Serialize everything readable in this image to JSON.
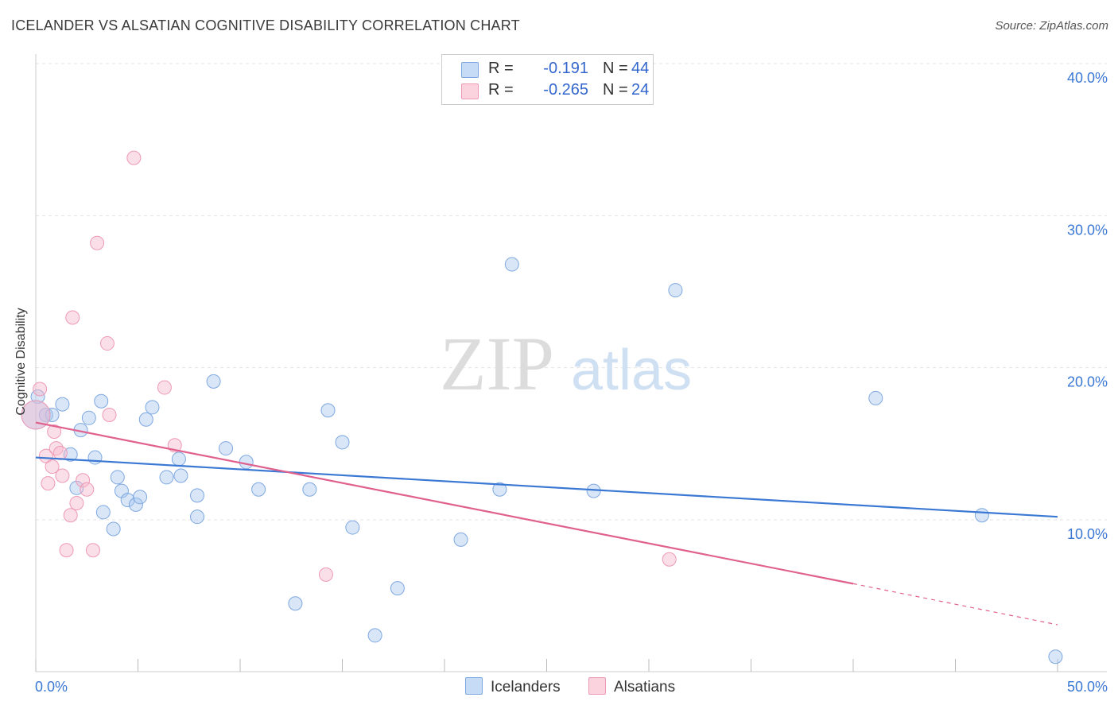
{
  "header": {
    "title": "ICELANDER VS ALSATIAN COGNITIVE DISABILITY CORRELATION CHART",
    "source": "Source: ZipAtlas.com"
  },
  "legend_top": {
    "rows": [
      {
        "r_label": "R =",
        "r_value": "-0.191",
        "n_label": "N =",
        "n_value": "44",
        "color": "#a9c8f0"
      },
      {
        "r_label": "R =",
        "r_value": "-0.265",
        "n_label": "N =",
        "n_value": "24",
        "color": "#f6b8cb"
      }
    ]
  },
  "legend_bottom": {
    "items": [
      {
        "label": "Icelanders",
        "color": "#a9c8f0"
      },
      {
        "label": "Alsatians",
        "color": "#f6b8cb"
      }
    ]
  },
  "watermark": {
    "zip": "ZIP",
    "atlas": "atlas"
  },
  "chart_data": {
    "type": "scatter",
    "title": "ICELANDER VS ALSATIAN COGNITIVE DISABILITY CORRELATION CHART",
    "ylabel": "Cognitive Disability",
    "xlabel": "",
    "xlim": [
      0,
      50
    ],
    "ylim": [
      0,
      40
    ],
    "x_tick_labels": [
      "0.0%",
      "50.0%"
    ],
    "y_tick_labels": [
      "10.0%",
      "20.0%",
      "30.0%",
      "40.0%"
    ],
    "y_ticks": [
      10,
      20,
      30,
      40
    ],
    "grid": true,
    "legend_position": "top-center",
    "colors": {
      "icelanders": "#3a78d4",
      "alsatians": "#e0608e"
    },
    "series": [
      {
        "name": "Icelanders",
        "r": -0.191,
        "n": 44,
        "trend": {
          "x0": 0,
          "y0": 14.1,
          "x1": 50,
          "y1": 10.2
        },
        "points": [
          [
            0.1,
            18.1
          ],
          [
            0.5,
            16.9
          ],
          [
            0.8,
            16.9
          ],
          [
            1.3,
            17.6
          ],
          [
            1.7,
            14.3
          ],
          [
            2.0,
            12.1
          ],
          [
            2.2,
            15.9
          ],
          [
            2.6,
            16.7
          ],
          [
            2.9,
            14.1
          ],
          [
            3.2,
            17.8
          ],
          [
            3.3,
            10.5
          ],
          [
            3.8,
            9.4
          ],
          [
            4.0,
            12.8
          ],
          [
            4.2,
            11.9
          ],
          [
            4.5,
            11.3
          ],
          [
            4.9,
            11.0
          ],
          [
            5.1,
            11.5
          ],
          [
            5.4,
            16.6
          ],
          [
            5.7,
            17.4
          ],
          [
            6.4,
            12.8
          ],
          [
            7.0,
            14.0
          ],
          [
            7.1,
            12.9
          ],
          [
            7.9,
            11.6
          ],
          [
            7.9,
            10.2
          ],
          [
            8.7,
            19.1
          ],
          [
            9.3,
            14.7
          ],
          [
            10.3,
            13.8
          ],
          [
            10.9,
            12.0
          ],
          [
            12.7,
            4.5
          ],
          [
            13.4,
            12.0
          ],
          [
            14.3,
            17.2
          ],
          [
            15.0,
            15.1
          ],
          [
            15.5,
            9.5
          ],
          [
            16.6,
            2.4
          ],
          [
            17.7,
            5.5
          ],
          [
            20.8,
            8.7
          ],
          [
            22.7,
            12.0
          ],
          [
            23.3,
            26.8
          ],
          [
            27.3,
            11.9
          ],
          [
            31.3,
            25.1
          ],
          [
            41.1,
            18.0
          ],
          [
            46.3,
            10.3
          ],
          [
            49.9,
            1.0
          ],
          [
            0.0,
            16.9
          ]
        ]
      },
      {
        "name": "Alsatians",
        "r": -0.265,
        "n": 24,
        "trend": {
          "x0": 0,
          "y0": 16.4,
          "x1": 40,
          "y1": 5.8,
          "dashed_to_x": 50,
          "dashed_to_y": 3.1
        },
        "points": [
          [
            0.2,
            18.6
          ],
          [
            0.5,
            14.2
          ],
          [
            0.6,
            12.4
          ],
          [
            0.8,
            13.5
          ],
          [
            0.9,
            15.8
          ],
          [
            1.0,
            14.7
          ],
          [
            1.2,
            14.4
          ],
          [
            1.3,
            12.9
          ],
          [
            1.5,
            8.0
          ],
          [
            1.7,
            10.3
          ],
          [
            1.8,
            23.3
          ],
          [
            2.0,
            11.1
          ],
          [
            2.3,
            12.6
          ],
          [
            2.5,
            12.0
          ],
          [
            2.8,
            8.0
          ],
          [
            3.0,
            28.2
          ],
          [
            3.5,
            21.6
          ],
          [
            3.6,
            16.9
          ],
          [
            4.8,
            33.8
          ],
          [
            6.3,
            18.7
          ],
          [
            6.8,
            14.9
          ],
          [
            14.2,
            6.4
          ],
          [
            31.0,
            7.4
          ],
          [
            0.0,
            16.9
          ]
        ]
      }
    ]
  }
}
